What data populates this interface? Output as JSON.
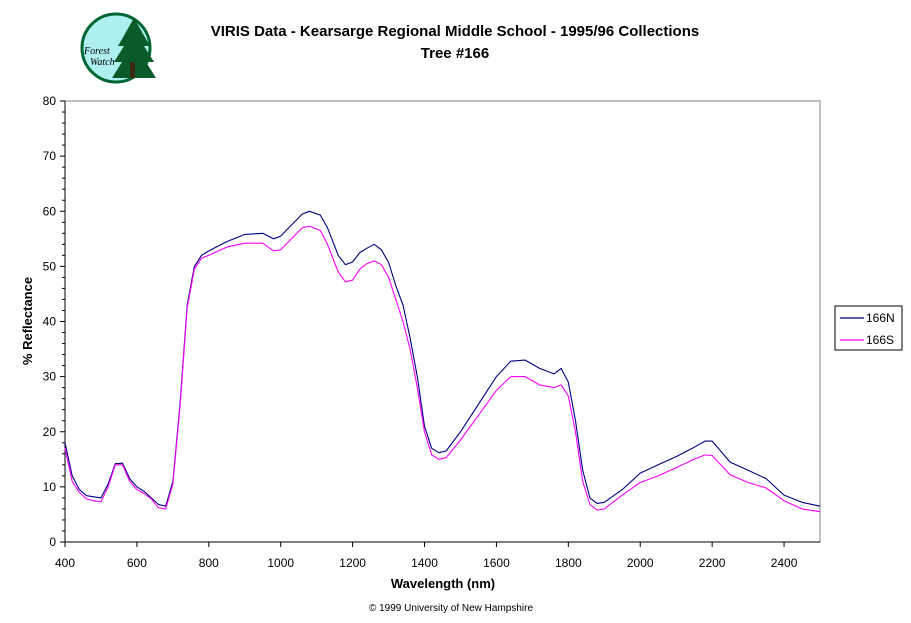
{
  "chart_data": {
    "type": "line",
    "title": "VIRIS Data - Kearsarge Regional Middle School - 1995/96 Collections",
    "subtitle": "Tree #166",
    "xlabel": "Wavelength (nm)",
    "ylabel": "% Reflectance",
    "xlim": [
      400,
      2500
    ],
    "ylim": [
      0,
      80
    ],
    "x_ticks": [
      400,
      600,
      800,
      1000,
      1200,
      1400,
      1600,
      1800,
      2000,
      2200,
      2400
    ],
    "y_ticks": [
      0,
      10,
      20,
      30,
      40,
      50,
      60,
      70,
      80
    ],
    "grid": false,
    "legend_position": "right",
    "series": [
      {
        "name": "166N",
        "color": "#000080",
        "points": [
          [
            400,
            18
          ],
          [
            420,
            12
          ],
          [
            440,
            9.5
          ],
          [
            460,
            8.4
          ],
          [
            480,
            8.2
          ],
          [
            500,
            8
          ],
          [
            520,
            10.5
          ],
          [
            540,
            14.2
          ],
          [
            560,
            14.3
          ],
          [
            580,
            11.5
          ],
          [
            600,
            10
          ],
          [
            620,
            9.2
          ],
          [
            640,
            8
          ],
          [
            660,
            6.8
          ],
          [
            680,
            6.5
          ],
          [
            700,
            11
          ],
          [
            720,
            25
          ],
          [
            740,
            43
          ],
          [
            760,
            50
          ],
          [
            780,
            52
          ],
          [
            800,
            52.8
          ],
          [
            850,
            54.5
          ],
          [
            900,
            55.8
          ],
          [
            950,
            56
          ],
          [
            980,
            55
          ],
          [
            1000,
            55.5
          ],
          [
            1030,
            57.5
          ],
          [
            1060,
            59.5
          ],
          [
            1080,
            60
          ],
          [
            1110,
            59.3
          ],
          [
            1130,
            57
          ],
          [
            1160,
            52
          ],
          [
            1180,
            50.3
          ],
          [
            1200,
            50.8
          ],
          [
            1220,
            52.5
          ],
          [
            1240,
            53.3
          ],
          [
            1260,
            54
          ],
          [
            1280,
            53
          ],
          [
            1300,
            50.7
          ],
          [
            1320,
            46.5
          ],
          [
            1340,
            43
          ],
          [
            1360,
            37
          ],
          [
            1380,
            30
          ],
          [
            1400,
            21
          ],
          [
            1420,
            17
          ],
          [
            1440,
            16.2
          ],
          [
            1460,
            16.5
          ],
          [
            1500,
            20
          ],
          [
            1550,
            25
          ],
          [
            1600,
            30
          ],
          [
            1640,
            32.8
          ],
          [
            1680,
            33
          ],
          [
            1720,
            31.5
          ],
          [
            1760,
            30.5
          ],
          [
            1780,
            31.5
          ],
          [
            1800,
            29
          ],
          [
            1820,
            22
          ],
          [
            1840,
            13
          ],
          [
            1860,
            8
          ],
          [
            1880,
            7
          ],
          [
            1900,
            7.2
          ],
          [
            1950,
            9.5
          ],
          [
            2000,
            12.5
          ],
          [
            2050,
            14
          ],
          [
            2100,
            15.5
          ],
          [
            2150,
            17.2
          ],
          [
            2180,
            18.3
          ],
          [
            2200,
            18.3
          ],
          [
            2220,
            16.8
          ],
          [
            2250,
            14.5
          ],
          [
            2300,
            13
          ],
          [
            2350,
            11.5
          ],
          [
            2400,
            8.5
          ],
          [
            2450,
            7.2
          ],
          [
            2500,
            6.5
          ]
        ]
      },
      {
        "name": "166S",
        "color": "#ff00ff",
        "points": [
          [
            400,
            17
          ],
          [
            420,
            11
          ],
          [
            440,
            9
          ],
          [
            460,
            7.8
          ],
          [
            480,
            7.5
          ],
          [
            500,
            7.3
          ],
          [
            520,
            10
          ],
          [
            540,
            14
          ],
          [
            560,
            14
          ],
          [
            580,
            11
          ],
          [
            600,
            9.5
          ],
          [
            620,
            8.8
          ],
          [
            640,
            7.8
          ],
          [
            660,
            6.2
          ],
          [
            680,
            6
          ],
          [
            700,
            10.5
          ],
          [
            720,
            24.5
          ],
          [
            740,
            42.5
          ],
          [
            760,
            49.5
          ],
          [
            780,
            51.5
          ],
          [
            800,
            52
          ],
          [
            850,
            53.5
          ],
          [
            900,
            54.2
          ],
          [
            950,
            54.2
          ],
          [
            980,
            52.8
          ],
          [
            1000,
            53
          ],
          [
            1030,
            55
          ],
          [
            1060,
            57
          ],
          [
            1080,
            57.3
          ],
          [
            1110,
            56.5
          ],
          [
            1130,
            54
          ],
          [
            1160,
            49
          ],
          [
            1180,
            47.2
          ],
          [
            1200,
            47.5
          ],
          [
            1220,
            49.5
          ],
          [
            1240,
            50.5
          ],
          [
            1260,
            51
          ],
          [
            1280,
            50.3
          ],
          [
            1300,
            48
          ],
          [
            1320,
            44
          ],
          [
            1340,
            40
          ],
          [
            1360,
            35
          ],
          [
            1380,
            28
          ],
          [
            1400,
            20
          ],
          [
            1420,
            15.8
          ],
          [
            1440,
            15
          ],
          [
            1460,
            15.3
          ],
          [
            1500,
            18.5
          ],
          [
            1550,
            23
          ],
          [
            1600,
            27.5
          ],
          [
            1640,
            30
          ],
          [
            1680,
            30
          ],
          [
            1720,
            28.5
          ],
          [
            1760,
            28
          ],
          [
            1780,
            28.5
          ],
          [
            1800,
            26.5
          ],
          [
            1820,
            20
          ],
          [
            1840,
            11
          ],
          [
            1860,
            6.8
          ],
          [
            1880,
            5.8
          ],
          [
            1900,
            6
          ],
          [
            1950,
            8.5
          ],
          [
            2000,
            10.8
          ],
          [
            2050,
            12
          ],
          [
            2100,
            13.5
          ],
          [
            2150,
            15
          ],
          [
            2180,
            15.8
          ],
          [
            2200,
            15.7
          ],
          [
            2220,
            14.3
          ],
          [
            2250,
            12.2
          ],
          [
            2300,
            10.8
          ],
          [
            2350,
            9.8
          ],
          [
            2400,
            7.5
          ],
          [
            2450,
            6
          ],
          [
            2500,
            5.5
          ]
        ]
      }
    ]
  },
  "logo": {
    "line1": "Forest",
    "line2": "Watch",
    "colors": {
      "circle_fill": "#aef0f0",
      "ring": "#006633",
      "tree": "#0a5a2a"
    }
  },
  "copyright": "© 1999 University of New Hampshire"
}
